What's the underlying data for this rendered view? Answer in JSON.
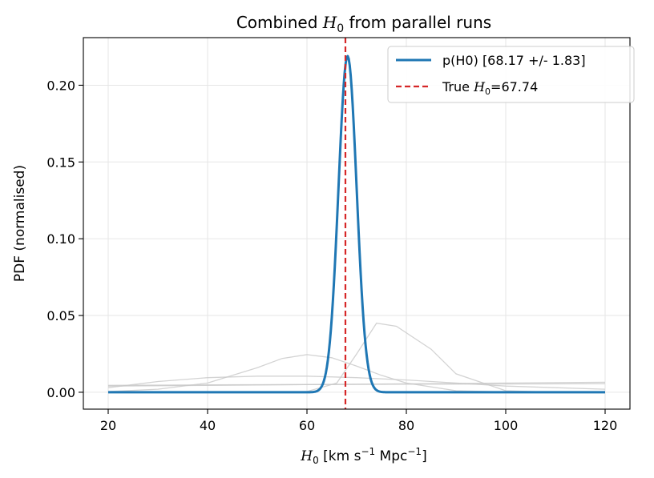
{
  "chart_data": {
    "type": "line",
    "title_main": "Combined ",
    "title_var": "H",
    "title_sub": "0",
    "title_rest": " from parallel runs",
    "xlabel_var": "H",
    "xlabel_sub": "0",
    "xlabel_unit_a": " [km s",
    "xlabel_exp_a": "−1",
    "xlabel_unit_b": " Mpc",
    "xlabel_exp_b": "−1",
    "xlabel_close": "]",
    "ylabel": "PDF (normalised)",
    "xlim": [
      15,
      125
    ],
    "ylim": [
      -0.011,
      0.231
    ],
    "x_ticks": [
      20,
      40,
      60,
      80,
      100,
      120
    ],
    "x_tick_labels": [
      "20",
      "40",
      "60",
      "80",
      "100",
      "120"
    ],
    "y_ticks": [
      0.0,
      0.05,
      0.1,
      0.15,
      0.2
    ],
    "y_tick_labels": [
      "0.00",
      "0.05",
      "0.10",
      "0.15",
      "0.20"
    ],
    "grid": true,
    "legend_position": "top-right",
    "colors": {
      "combined": "#1f77b4",
      "truth": "#d62728",
      "individual_runs": "#c8c8c8"
    },
    "series": [
      {
        "name": "p(H0) [68.17 +/- 1.83]",
        "kind": "combined",
        "mean": 68.17,
        "sigma": 1.83,
        "peak": 0.219,
        "x_range": [
          20,
          120
        ]
      }
    ],
    "individual_runs": [
      {
        "x": [
          20,
          35,
          50,
          60,
          66,
          70,
          74,
          78,
          85,
          90,
          100,
          110,
          120
        ],
        "y": [
          0.0,
          0.0,
          0.0,
          0.0005,
          0.006,
          0.025,
          0.045,
          0.043,
          0.028,
          0.012,
          0.001,
          0.0,
          0.0
        ]
      },
      {
        "x": [
          20,
          30,
          40,
          50,
          55,
          60,
          65,
          70,
          75,
          80,
          90,
          100,
          110,
          120
        ],
        "y": [
          0.0005,
          0.002,
          0.006,
          0.016,
          0.022,
          0.0245,
          0.0225,
          0.017,
          0.011,
          0.006,
          0.001,
          0.0002,
          0.0,
          0.0
        ]
      },
      {
        "x": [
          20,
          30,
          40,
          50,
          60,
          70,
          80,
          90,
          100,
          110,
          120
        ],
        "y": [
          0.003,
          0.007,
          0.0095,
          0.0105,
          0.0105,
          0.0095,
          0.008,
          0.006,
          0.004,
          0.003,
          0.002
        ]
      },
      {
        "x": [
          20,
          40,
          60,
          80,
          100,
          120
        ],
        "y": [
          0.0045,
          0.0048,
          0.005,
          0.0052,
          0.0054,
          0.0056
        ]
      },
      {
        "x": [
          20,
          40,
          60,
          80,
          100,
          120
        ],
        "y": [
          0.004,
          0.0045,
          0.005,
          0.0055,
          0.006,
          0.0065
        ]
      }
    ],
    "truth_line": {
      "label_text": "True ",
      "label_var": "H",
      "label_sub": "0",
      "label_value": "=67.74",
      "x": 67.74
    }
  }
}
